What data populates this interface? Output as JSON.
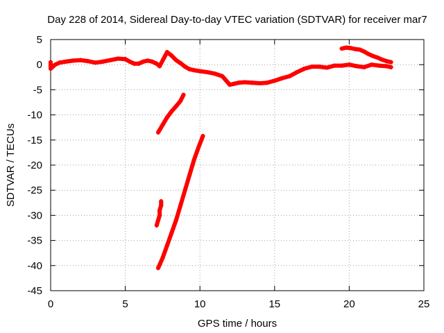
{
  "chart_data": {
    "type": "scatter",
    "title": "Day 228 of 2014, Sidereal Day-to-day VTEC variation (SDTVAR) for receiver mar7",
    "xlabel": "GPS time / hours",
    "ylabel": "SDTVAR / TECUs",
    "xlim": [
      0,
      25
    ],
    "ylim": [
      -45,
      5
    ],
    "xticks": [
      0,
      5,
      10,
      15,
      20,
      25
    ],
    "yticks": [
      5,
      0,
      -5,
      -10,
      -15,
      -20,
      -25,
      -30,
      -35,
      -40,
      -45
    ],
    "grid": true,
    "legend": "none",
    "series": [
      {
        "name": "main band",
        "color": "#ff0000",
        "points": [
          [
            0.0,
            0.5
          ],
          [
            0.0,
            -0.8
          ],
          [
            0.3,
            0.0
          ],
          [
            0.6,
            0.4
          ],
          [
            1.0,
            0.6
          ],
          [
            1.5,
            0.8
          ],
          [
            2.0,
            0.9
          ],
          [
            2.5,
            0.7
          ],
          [
            3.0,
            0.4
          ],
          [
            3.5,
            0.6
          ],
          [
            4.0,
            0.9
          ],
          [
            4.5,
            1.2
          ],
          [
            5.0,
            1.1
          ],
          [
            5.3,
            0.6
          ],
          [
            5.6,
            0.2
          ],
          [
            5.9,
            0.2
          ],
          [
            6.2,
            0.6
          ],
          [
            6.5,
            0.8
          ],
          [
            6.8,
            0.6
          ],
          [
            7.1,
            0.2
          ],
          [
            7.3,
            -0.3
          ],
          [
            7.8,
            2.5
          ],
          [
            8.1,
            1.8
          ],
          [
            8.4,
            0.9
          ],
          [
            8.7,
            0.3
          ],
          [
            9.0,
            -0.4
          ],
          [
            9.3,
            -0.9
          ],
          [
            9.6,
            -1.1
          ],
          [
            10.0,
            -1.3
          ],
          [
            10.5,
            -1.5
          ],
          [
            11.0,
            -1.8
          ],
          [
            11.5,
            -2.3
          ],
          [
            12.0,
            -4.0
          ],
          [
            12.3,
            -3.8
          ],
          [
            12.6,
            -3.6
          ],
          [
            13.0,
            -3.5
          ],
          [
            13.5,
            -3.6
          ],
          [
            14.0,
            -3.7
          ],
          [
            14.5,
            -3.6
          ],
          [
            15.0,
            -3.2
          ],
          [
            15.5,
            -2.7
          ],
          [
            16.0,
            -2.3
          ],
          [
            16.5,
            -1.5
          ],
          [
            17.0,
            -0.8
          ],
          [
            17.5,
            -0.4
          ],
          [
            18.0,
            -0.4
          ],
          [
            18.5,
            -0.6
          ],
          [
            19.0,
            -0.2
          ],
          [
            19.5,
            -0.2
          ],
          [
            20.0,
            0.0
          ],
          [
            20.5,
            -0.3
          ],
          [
            21.0,
            -0.5
          ],
          [
            21.5,
            0.0
          ],
          [
            22.0,
            -0.2
          ],
          [
            22.5,
            -0.3
          ],
          [
            22.8,
            -0.5
          ]
        ]
      },
      {
        "name": "upper arc",
        "color": "#ff0000",
        "points": [
          [
            19.5,
            3.2
          ],
          [
            19.8,
            3.4
          ],
          [
            20.1,
            3.3
          ],
          [
            20.4,
            3.1
          ],
          [
            20.7,
            3.0
          ],
          [
            21.0,
            2.6
          ],
          [
            21.3,
            2.1
          ],
          [
            21.6,
            1.7
          ],
          [
            21.9,
            1.4
          ],
          [
            22.2,
            1.0
          ],
          [
            22.5,
            0.7
          ],
          [
            22.8,
            0.5
          ]
        ]
      },
      {
        "name": "steep segment A",
        "color": "#ff0000",
        "points": [
          [
            7.2,
            -13.5
          ],
          [
            7.5,
            -12.0
          ],
          [
            7.8,
            -10.5
          ],
          [
            8.1,
            -9.3
          ],
          [
            8.4,
            -8.3
          ],
          [
            8.7,
            -7.2
          ],
          [
            8.9,
            -6.0
          ]
        ]
      },
      {
        "name": "steep segment B",
        "color": "#ff0000",
        "points": [
          [
            7.2,
            -40.5
          ],
          [
            7.5,
            -38.5
          ],
          [
            7.8,
            -36.0
          ],
          [
            8.1,
            -33.5
          ],
          [
            8.4,
            -31.0
          ],
          [
            8.7,
            -28.0
          ],
          [
            9.0,
            -25.0
          ],
          [
            9.3,
            -22.0
          ],
          [
            9.6,
            -19.0
          ],
          [
            9.9,
            -16.5
          ],
          [
            10.2,
            -14.2
          ]
        ]
      },
      {
        "name": "short segment",
        "color": "#ff0000",
        "points": [
          [
            7.1,
            -32.0
          ],
          [
            7.2,
            -31.0
          ],
          [
            7.3,
            -30.0
          ],
          [
            7.3,
            -29.0
          ],
          [
            7.4,
            -28.0
          ],
          [
            7.4,
            -27.2
          ]
        ]
      }
    ]
  }
}
